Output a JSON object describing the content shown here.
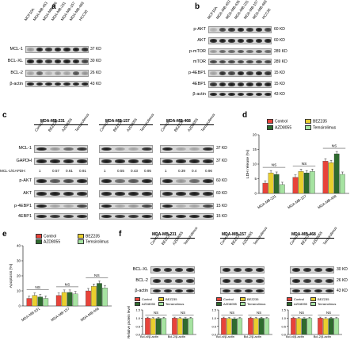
{
  "colors": {
    "control": "#e8433a",
    "bez235": "#e9cf2e",
    "azd8055": "#2e6b2e",
    "temsirolimus": "#a6e3a1"
  },
  "panel_a": {
    "letter": "a",
    "lanes": [
      "MCF10A",
      "MDA-MB-453",
      "MDA-MB-436",
      "MDA-MB-231",
      "MDA-MB-157",
      "MDA-MB-468",
      "HCC38"
    ],
    "rows": [
      {
        "label": "MCL-1",
        "kd": "37 KD"
      },
      {
        "label": "BCL-XL",
        "kd": "30 KD"
      },
      {
        "label": "BCL-2",
        "kd": "26 KD"
      },
      {
        "label": "β-actin",
        "kd": "43 KD"
      }
    ]
  },
  "panel_b": {
    "letter": "b",
    "lanes": [
      "MCF10A",
      "MDA-MB-453",
      "MDA-MB-436",
      "MDA-MB-231",
      "MDA-MB-157",
      "MDA-MB-468",
      "HCC38"
    ],
    "rows": [
      {
        "label": "p-AKT",
        "kd": "60 KD"
      },
      {
        "label": "AKT",
        "kd": "60 KD"
      },
      {
        "label": "p-mTOR",
        "kd": "289 KD"
      },
      {
        "label": "mTOR",
        "kd": "289 KD"
      },
      {
        "label": "p-4EBP1",
        "kd": "15 KD"
      },
      {
        "label": "4EBP1",
        "kd": "15 KD"
      },
      {
        "label": "β-actin",
        "kd": "43 KD"
      }
    ]
  },
  "panel_c": {
    "letter": "c",
    "treatments": [
      "Control",
      "BEZ235",
      "AZD8055",
      "Temsirolimus"
    ],
    "cells": [
      {
        "title": "MDA-MB-231",
        "ratios": [
          "1",
          "0.57",
          "0.61",
          "0.91"
        ]
      },
      {
        "title": "MDA-MB-157",
        "ratios": [
          "1",
          "0.55",
          "0.43",
          "0.95"
        ]
      },
      {
        "title": "MDA-MB-468",
        "ratios": [
          "1",
          "0.39",
          "0.4",
          "0.96"
        ]
      }
    ],
    "ratio_label": "MCL-1/GAPDH:",
    "rows": [
      {
        "label": "MCL-1",
        "kd": "37 KD"
      },
      {
        "label": "GAPDH",
        "kd": "37 KD"
      },
      {
        "label": "p-AKT",
        "kd": "60 KD"
      },
      {
        "label": "AKT",
        "kd": "60 KD"
      },
      {
        "label": "p-4EBP1",
        "kd": "15 KD"
      },
      {
        "label": "4EBP1",
        "kd": "15 KD"
      }
    ]
  },
  "panel_f": {
    "letter": "f",
    "treatments": [
      "Control",
      "BEZ235",
      "AZD8055",
      "Temsirolimus"
    ],
    "cells": [
      "MDA-MB-231",
      "MDA-MB-157",
      "MDA-MB-468"
    ],
    "rows": [
      {
        "label": "BCL-XL",
        "kd": "30 KD"
      },
      {
        "label": "BCL-2",
        "kd": "26 KD"
      },
      {
        "label": "β-actin",
        "kd": "43 KD"
      }
    ],
    "legend": [
      "Control",
      "BEZ235",
      "AZD8055",
      "Temsirolimus"
    ]
  },
  "chart_data": [
    {
      "panel": "d",
      "type": "bar",
      "ylabel": "LDH release (%)",
      "ylim": [
        0,
        20
      ],
      "yticks": [
        "0",
        "5",
        "10",
        "15",
        "20"
      ],
      "categories": [
        "MDA-MB-231",
        "MDA-MB-157",
        "MDA-MB-468"
      ],
      "series": [
        {
          "name": "Control",
          "values": [
            3.5,
            5.5,
            11
          ]
        },
        {
          "name": "BEZ235",
          "values": [
            7,
            7.5,
            10.5
          ]
        },
        {
          "name": "AZD8055",
          "values": [
            6.5,
            7,
            13.5
          ]
        },
        {
          "name": "Temsirolimus",
          "values": [
            3,
            7.5,
            6.5
          ]
        }
      ],
      "annotations": [
        "NS",
        "NS",
        "NS"
      ]
    },
    {
      "panel": "e",
      "type": "bar",
      "ylabel": "Apoptosis (%)",
      "ylim": [
        0,
        40
      ],
      "yticks": [
        "0",
        "10",
        "20",
        "30",
        "40"
      ],
      "categories": [
        "MDA-MB-231",
        "MDA-MB-157",
        "MDA-MB-468"
      ],
      "series": [
        {
          "name": "Control",
          "values": [
            5,
            7,
            10
          ]
        },
        {
          "name": "BEZ235",
          "values": [
            7,
            9,
            13
          ]
        },
        {
          "name": "AZD8055",
          "values": [
            6,
            9,
            15
          ]
        },
        {
          "name": "Temsirolimus",
          "values": [
            5,
            8,
            12
          ]
        }
      ],
      "annotations": [
        "NS",
        "NS",
        "NS"
      ]
    },
    {
      "panel": "f-MDA-MB-231",
      "type": "bar",
      "ylabel": "Relative protein level",
      "ylim": [
        0,
        1.5
      ],
      "yticks": [
        "0.0",
        "0.5",
        "1.0",
        "1.5"
      ],
      "categories": [
        "Bcl-xl/β-actin",
        "Bcl-2/β-actin"
      ],
      "series": [
        {
          "name": "Control",
          "values": [
            1.0,
            1.0
          ]
        },
        {
          "name": "BEZ235",
          "values": [
            0.97,
            0.98
          ]
        },
        {
          "name": "AZD8055",
          "values": [
            0.98,
            0.97
          ]
        },
        {
          "name": "Temsirolimus",
          "values": [
            0.99,
            0.99
          ]
        }
      ],
      "annotations": [
        "NS",
        "NS"
      ]
    },
    {
      "panel": "f-MDA-MB-157",
      "type": "bar",
      "ylabel": "",
      "ylim": [
        0,
        1.5
      ],
      "yticks": [
        "0.0",
        "0.5",
        "1.0",
        "1.5"
      ],
      "categories": [
        "Bcl-xl/β-actin",
        "Bcl-2/β-actin"
      ],
      "series": [
        {
          "name": "Control",
          "values": [
            1.0,
            1.0
          ]
        },
        {
          "name": "BEZ235",
          "values": [
            0.98,
            0.98
          ]
        },
        {
          "name": "AZD8055",
          "values": [
            0.96,
            0.99
          ]
        },
        {
          "name": "Temsirolimus",
          "values": [
            0.98,
            0.98
          ]
        }
      ],
      "annotations": [
        "NS",
        "NS"
      ]
    },
    {
      "panel": "f-MDA-MB-468",
      "type": "bar",
      "ylabel": "",
      "ylim": [
        0,
        1.5
      ],
      "yticks": [
        "0.0",
        "0.5",
        "1.0",
        "1.5"
      ],
      "categories": [
        "Bcl-xl/β-actin",
        "Bcl-2/β-actin"
      ],
      "series": [
        {
          "name": "Control",
          "values": [
            1.0,
            1.0
          ]
        },
        {
          "name": "BEZ235",
          "values": [
            0.98,
            0.97
          ]
        },
        {
          "name": "AZD8055",
          "values": [
            0.97,
            0.99
          ]
        },
        {
          "name": "Temsirolimus",
          "values": [
            0.99,
            0.98
          ]
        }
      ],
      "annotations": [
        "NS",
        "NS"
      ]
    }
  ]
}
